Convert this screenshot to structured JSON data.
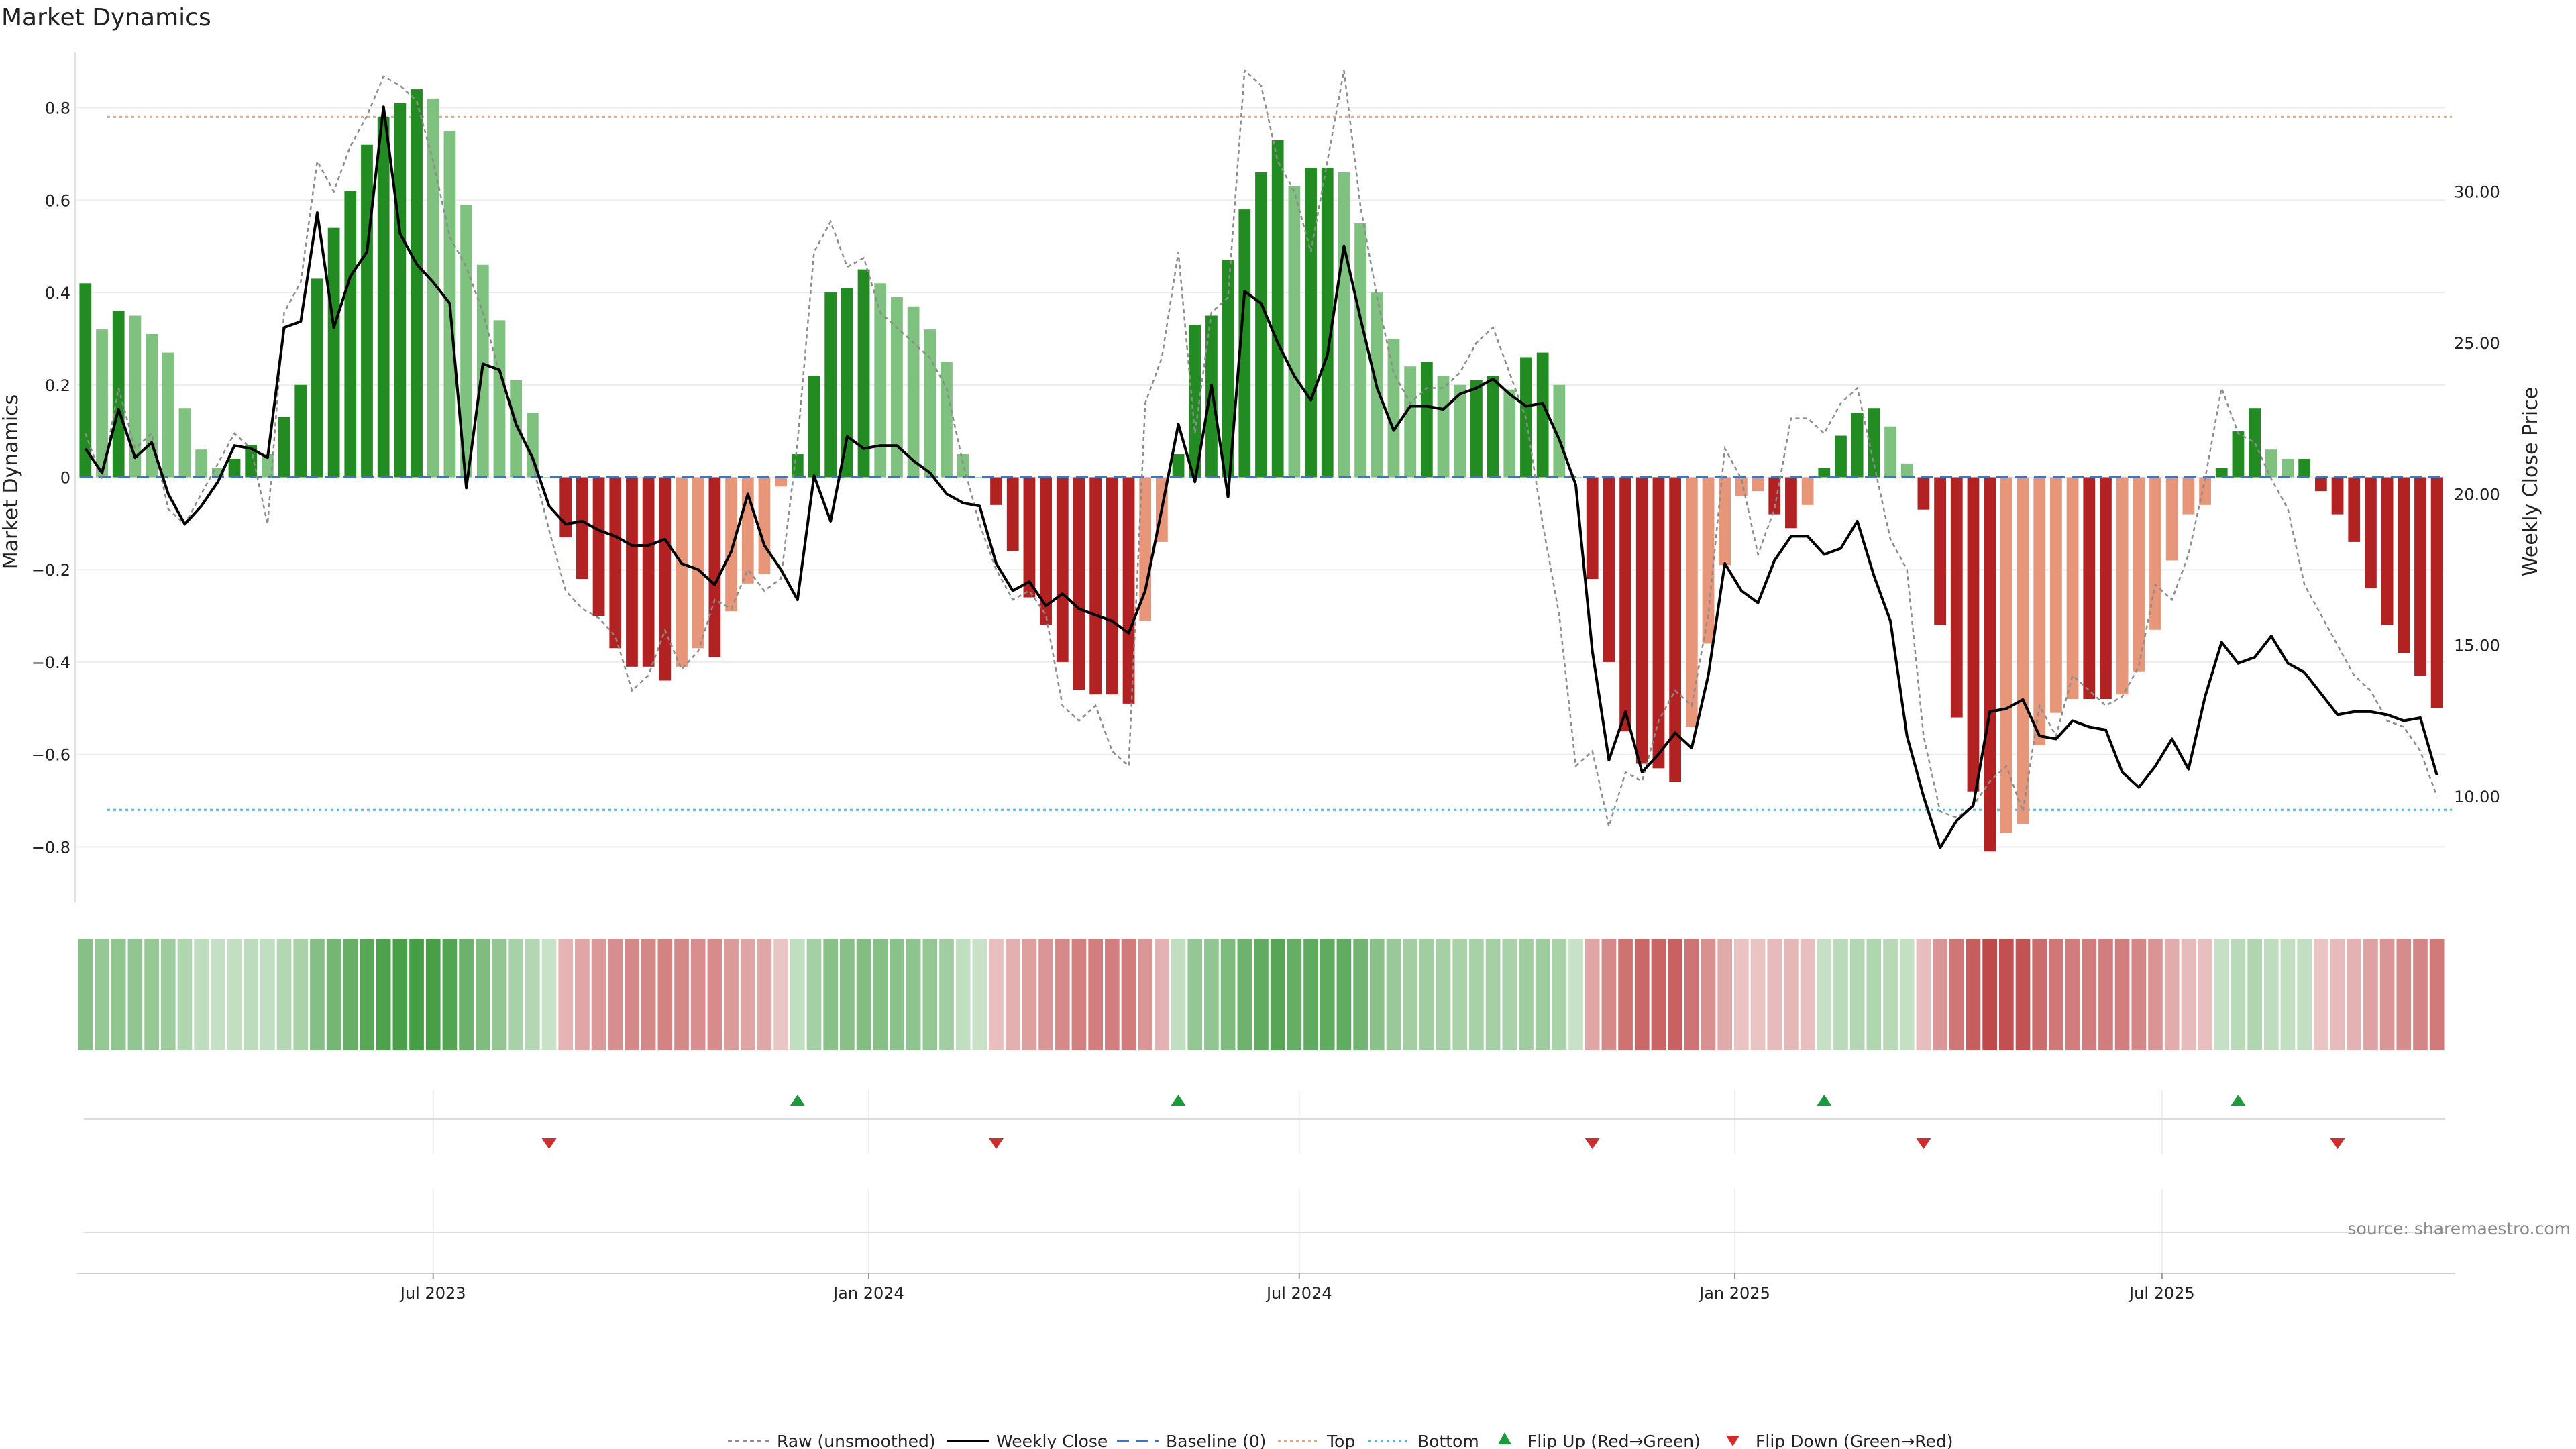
{
  "title": "Market Dynamics",
  "source": "source: sharemaestro.com",
  "colors": {
    "green_strong": "#228b22",
    "green_light": "#7fc17f",
    "red_strong": "#b22222",
    "red_light": "#e8967a",
    "close_line": "#000000",
    "raw_line": "#8c8c8c",
    "baseline": "#4a72b0",
    "top": "#e8a87c",
    "bottom": "#4fb8d6",
    "flip_up": "#1a9a3a",
    "flip_down": "#d12c2c",
    "grid": "#ececec"
  },
  "chart_data": {
    "type": "bar",
    "title": "Market Dynamics",
    "ylabel": "Market Dynamics",
    "y2label": "Weekly Close Price",
    "ylim": [
      -0.92,
      0.92
    ],
    "y2lim": [
      6.5,
      34.6
    ],
    "yticks": [
      -0.8,
      -0.6,
      -0.4,
      -0.2,
      0,
      0.2,
      0.4,
      0.6,
      0.8
    ],
    "ytick_labels": [
      "−0.8",
      "−0.6",
      "−0.4",
      "−0.2",
      "0",
      "0.2",
      "0.4",
      "0.6",
      "0.8"
    ],
    "y2ticks": [
      10,
      15,
      20,
      25,
      30
    ],
    "y2tick_labels": [
      "10.00",
      "15.00",
      "20.00",
      "25.00",
      "30.00"
    ],
    "top_level": 0.78,
    "bottom_level": -0.72,
    "x_start": "2023-02-06",
    "week_count": 143,
    "xticks": [
      {
        "label": "Jul 2023",
        "week": 21
      },
      {
        "label": "Jan 2024",
        "week": 47.3
      },
      {
        "label": "Jul 2024",
        "week": 73.3
      },
      {
        "label": "Jan 2025",
        "week": 99.6
      },
      {
        "label": "Jul 2025",
        "week": 125.4
      }
    ],
    "series": [
      {
        "name": "Market Dynamics (bars)",
        "values": [
          0.42,
          0.32,
          0.36,
          0.35,
          0.31,
          0.27,
          0.15,
          0.06,
          0.02,
          0.04,
          0.07,
          0.05,
          0.13,
          0.2,
          0.43,
          0.54,
          0.62,
          0.72,
          0.78,
          0.81,
          0.84,
          0.82,
          0.75,
          0.59,
          0.46,
          0.34,
          0.21,
          0.14,
          0,
          -0.13,
          -0.22,
          -0.3,
          -0.37,
          -0.41,
          -0.41,
          -0.44,
          -0.41,
          -0.37,
          -0.39,
          -0.29,
          -0.23,
          -0.21,
          -0.02,
          0.05,
          0.22,
          0.4,
          0.41,
          0.45,
          0.42,
          0.39,
          0.37,
          0.32,
          0.25,
          0.05,
          0,
          -0.06,
          -0.16,
          -0.26,
          -0.32,
          -0.4,
          -0.46,
          -0.47,
          -0.47,
          -0.49,
          -0.31,
          -0.14,
          0.05,
          0.33,
          0.35,
          0.47,
          0.58,
          0.66,
          0.73,
          0.63,
          0.67,
          0.67,
          0.66,
          0.55,
          0.4,
          0.3,
          0.24,
          0.25,
          0.22,
          0.2,
          0.21,
          0.22,
          0.19,
          0.26,
          0.27,
          0.2,
          0,
          -0.22,
          -0.4,
          -0.55,
          -0.62,
          -0.63,
          -0.66,
          -0.54,
          -0.36,
          -0.19,
          -0.04,
          -0.03,
          -0.08,
          -0.11,
          -0.06,
          0.02,
          0.09,
          0.14,
          0.15,
          0.11,
          0.03,
          -0.07,
          -0.32,
          -0.52,
          -0.68,
          -0.81,
          -0.77,
          -0.75,
          -0.58,
          -0.51,
          -0.48,
          -0.48,
          -0.48,
          -0.47,
          -0.42,
          -0.33,
          -0.18,
          -0.08,
          -0.06,
          0.02,
          0.1,
          0.15,
          0.06,
          0.04,
          0.04,
          -0.03,
          -0.08,
          -0.14,
          -0.24,
          -0.32,
          -0.38,
          -0.43,
          -0.5
        ]
      },
      {
        "name": "Weekly Close",
        "values": [
          21.5,
          20.7,
          22.8,
          21.2,
          21.7,
          20.0,
          19.0,
          19.6,
          20.4,
          21.6,
          21.5,
          21.2,
          25.5,
          25.7,
          29.3,
          25.5,
          27.2,
          28.0,
          32.8,
          28.6,
          27.6,
          27.0,
          26.3,
          20.2,
          24.3,
          24.1,
          22.3,
          21.2,
          19.6,
          19.0,
          19.1,
          18.8,
          18.6,
          18.3,
          18.3,
          18.5,
          17.7,
          17.5,
          17.0,
          18.1,
          20.0,
          18.3,
          17.5,
          16.5,
          20.6,
          19.1,
          21.9,
          21.5,
          21.6,
          21.6,
          21.1,
          20.7,
          20.0,
          19.7,
          19.6,
          17.7,
          16.8,
          17.1,
          16.3,
          16.7,
          16.2,
          16.0,
          15.8,
          15.4,
          16.8,
          19.5,
          22.3,
          20.4,
          23.6,
          19.9,
          26.7,
          26.3,
          25.0,
          23.9,
          23.1,
          24.6,
          28.2,
          25.8,
          23.5,
          22.1,
          22.9,
          22.9,
          22.8,
          23.3,
          23.5,
          23.8,
          23.3,
          22.9,
          23.0,
          21.8,
          20.3,
          14.8,
          11.2,
          12.8,
          10.8,
          11.4,
          12.1,
          11.6,
          14.0,
          17.7,
          16.8,
          16.4,
          17.8,
          18.6,
          18.6,
          18.0,
          18.2,
          19.1,
          17.3,
          15.8,
          12.0,
          10.0,
          8.3,
          9.2,
          9.7,
          12.8,
          12.9,
          13.2,
          12.0,
          11.9,
          12.5,
          12.3,
          12.2,
          10.8,
          10.3,
          11.0,
          11.9,
          10.9,
          13.3,
          15.1,
          14.4,
          14.6,
          15.3,
          14.4,
          14.1,
          13.4,
          12.7,
          12.8,
          12.8,
          12.7,
          12.5,
          12.6,
          10.7
        ]
      },
      {
        "name": "Raw (unsmoothed)",
        "values": [
          22.0,
          20.5,
          23.5,
          21.5,
          22.0,
          19.5,
          19.0,
          20.0,
          21.0,
          22.0,
          21.5,
          19.0,
          26.0,
          27.0,
          31.0,
          30.0,
          31.5,
          32.5,
          33.8,
          33.5,
          33.0,
          31.0,
          28.5,
          27.5,
          26.0,
          24.0,
          22.5,
          21.0,
          18.8,
          16.8,
          16.2,
          15.9,
          15.3,
          13.5,
          14.0,
          15.5,
          14.2,
          14.8,
          16.5,
          16.2,
          17.5,
          16.8,
          17.2,
          21.7,
          28.0,
          29.0,
          27.5,
          27.8,
          26.0,
          25.5,
          25.0,
          24.5,
          23.5,
          21.0,
          19.0,
          17.5,
          16.5,
          16.8,
          16.0,
          13.0,
          12.5,
          13.0,
          11.5,
          11.0,
          23.0,
          24.5,
          28.0,
          22.0,
          26.0,
          26.5,
          34.0,
          33.5,
          31.0,
          30.0,
          28.0,
          31.0,
          34.0,
          29.5,
          26.5,
          24.0,
          23.0,
          23.5,
          23.5,
          24.0,
          25.0,
          25.5,
          24.0,
          22.5,
          19.0,
          16.0,
          11.0,
          11.5,
          9.0,
          10.8,
          10.5,
          12.5,
          13.5,
          13.0,
          16.0,
          21.5,
          20.5,
          18.0,
          19.5,
          22.5,
          22.5,
          22.0,
          23.0,
          23.5,
          21.0,
          18.5,
          17.5,
          12.0,
          9.5,
          9.3,
          9.7,
          10.5,
          11.0,
          9.5,
          13.0,
          12.0,
          14.0,
          13.5,
          13.0,
          13.3,
          14.3,
          17.0,
          16.5,
          18.0,
          20.5,
          23.5,
          22.0,
          21.7,
          20.5,
          19.5,
          17.0,
          16.0,
          15.0,
          14.0,
          13.5,
          12.5,
          12.3,
          11.5,
          10.0
        ]
      }
    ],
    "flips_up_weeks": [
      43,
      66,
      105,
      130
    ],
    "flips_down_weeks": [
      28,
      55,
      91,
      111,
      136
    ]
  },
  "legend": {
    "raw": "Raw (unsmoothed)",
    "close": "Weekly Close",
    "baseline": "Baseline (0)",
    "top": "Top",
    "bottom": "Bottom",
    "flip_up": "Flip Up (Red→Green)",
    "flip_down": "Flip Down (Green→Red)"
  }
}
